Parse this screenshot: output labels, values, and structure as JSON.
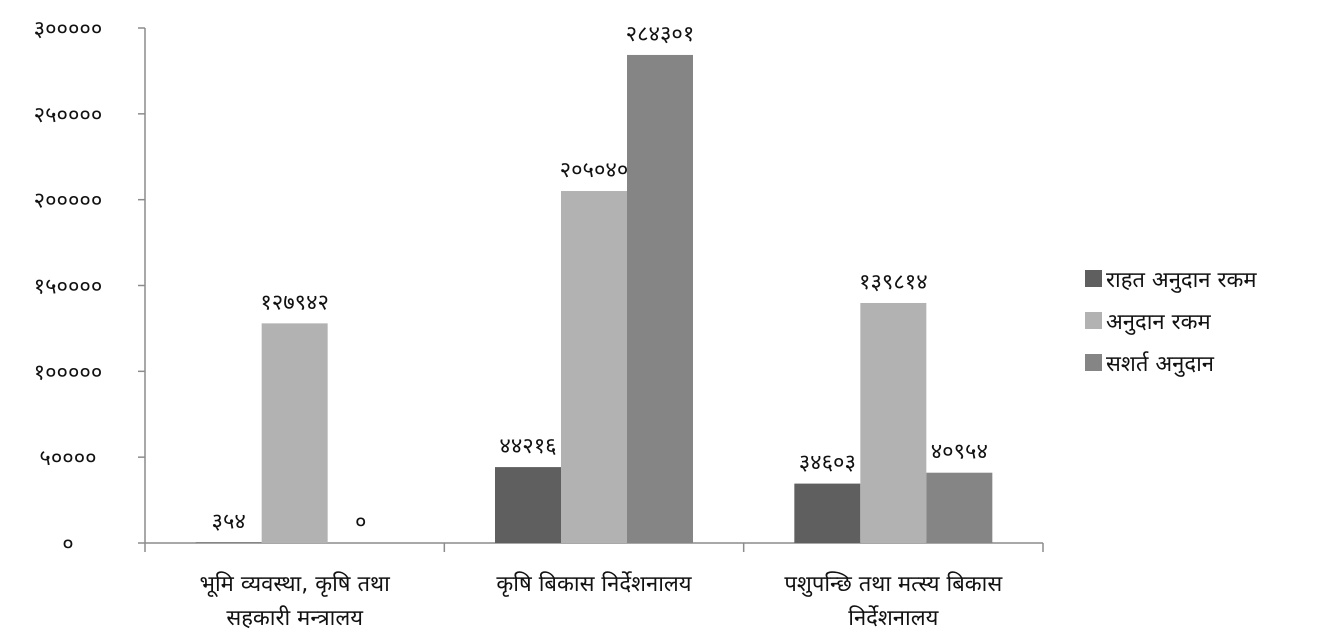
{
  "chart_data": {
    "type": "bar",
    "categories": [
      [
        "भूमि व्यवस्था, कृषि तथा",
        "सहकारी मन्त्रालय"
      ],
      [
        "कृषि बिकास निर्देशनालय"
      ],
      [
        "पशुपन्छि तथा मत्स्य बिकास",
        "निर्देशनालय"
      ]
    ],
    "series": [
      {
        "name": "राहत अनुदान रकम",
        "color": "#5f5f5f",
        "values": [
          354,
          44216,
          34603
        ],
        "labels": [
          "३५४",
          "४४२१६",
          "३४६०३"
        ]
      },
      {
        "name": "अनुदान रकम",
        "color": "#b2b2b2",
        "values": [
          127942,
          205040,
          139814
        ],
        "labels": [
          "१२७९४२",
          "२०५०४०",
          "१३९८१४"
        ]
      },
      {
        "name": "सशर्त अनुदान",
        "color": "#858585",
        "values": [
          0,
          284301,
          40954
        ],
        "labels": [
          "०",
          "२८४३०१",
          "४०९५४"
        ]
      }
    ],
    "ylim": [
      0,
      300000
    ],
    "yticks": [
      {
        "value": 0,
        "label": "०"
      },
      {
        "value": 50000,
        "label": "५००००"
      },
      {
        "value": 100000,
        "label": "१०००००"
      },
      {
        "value": 150000,
        "label": "१५००००"
      },
      {
        "value": 200000,
        "label": "२०००००"
      },
      {
        "value": 250000,
        "label": "२५००००"
      },
      {
        "value": 300000,
        "label": "३०००००"
      }
    ],
    "grid": false,
    "legend_position": "right",
    "title": "",
    "xlabel": "",
    "ylabel": ""
  }
}
